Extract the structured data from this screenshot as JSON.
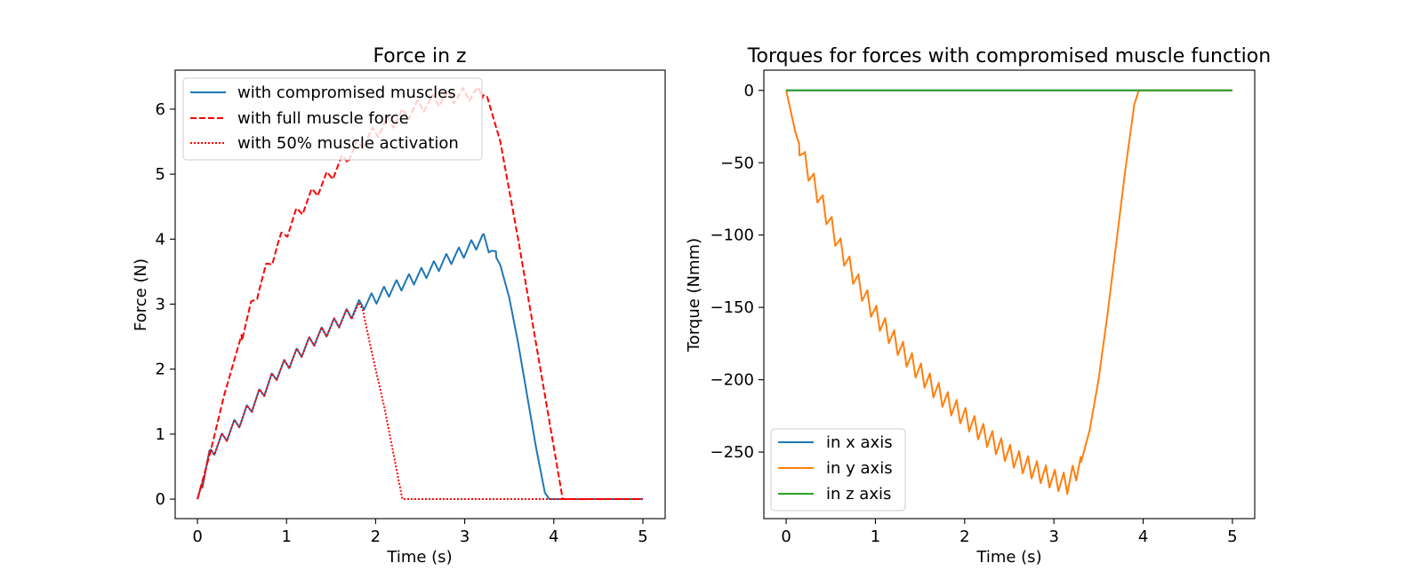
{
  "chart_data": [
    {
      "type": "line",
      "title": "Force in z",
      "xlabel": "Time (s)",
      "ylabel": "Force (N)",
      "xlim": [
        -0.25,
        5.25
      ],
      "ylim": [
        -0.3,
        6.6
      ],
      "xticks": [
        0,
        1,
        2,
        3,
        4,
        5
      ],
      "yticks": [
        0,
        1,
        2,
        3,
        4,
        5,
        6
      ],
      "xtick_labels": [
        "0",
        "1",
        "2",
        "3",
        "4",
        "5"
      ],
      "ytick_labels": [
        "0",
        "1",
        "2",
        "3",
        "4",
        "5",
        "6"
      ],
      "grid": false,
      "legend_position": "top-left",
      "series": [
        {
          "name": "with compromised muscles",
          "color": "#1f77b4",
          "style": "solid",
          "base": [
            [
              0,
              0
            ],
            [
              0.15,
              0.72
            ],
            [
              0.3,
              0.95
            ],
            [
              0.5,
              1.25
            ],
            [
              0.7,
              1.6
            ],
            [
              0.9,
              1.95
            ],
            [
              1.1,
              2.2
            ],
            [
              1.3,
              2.45
            ],
            [
              1.5,
              2.65
            ],
            [
              1.7,
              2.85
            ],
            [
              1.85,
              3.0
            ],
            [
              2.0,
              3.1
            ],
            [
              2.2,
              3.25
            ],
            [
              2.4,
              3.38
            ],
            [
              2.6,
              3.52
            ],
            [
              2.8,
              3.68
            ],
            [
              3.0,
              3.82
            ],
            [
              3.2,
              4.0
            ],
            [
              3.3,
              3.85
            ],
            [
              3.4,
              3.6
            ],
            [
              3.5,
              3.1
            ],
            [
              3.6,
              2.4
            ],
            [
              3.7,
              1.6
            ],
            [
              3.8,
              0.8
            ],
            [
              3.9,
              0.1
            ],
            [
              3.95,
              0.0
            ],
            [
              5.0,
              0.0
            ]
          ],
          "osc_period": 0.14,
          "osc_amplitude": 0.2,
          "osc_range": [
            0.05,
            3.35
          ]
        },
        {
          "name": "with full muscle force",
          "color": "#ff0000",
          "style": "dashed",
          "base": [
            [
              0,
              0
            ],
            [
              0.15,
              0.75
            ],
            [
              0.3,
              1.6
            ],
            [
              0.5,
              2.55
            ],
            [
              0.7,
              3.3
            ],
            [
              0.9,
              3.9
            ],
            [
              1.1,
              4.35
            ],
            [
              1.3,
              4.7
            ],
            [
              1.5,
              5.0
            ],
            [
              1.7,
              5.3
            ],
            [
              1.9,
              5.55
            ],
            [
              2.1,
              5.75
            ],
            [
              2.3,
              5.9
            ],
            [
              2.5,
              6.05
            ],
            [
              2.7,
              6.15
            ],
            [
              2.9,
              6.2
            ],
            [
              3.1,
              6.25
            ],
            [
              3.25,
              6.2
            ],
            [
              3.4,
              5.5
            ],
            [
              3.6,
              4.0
            ],
            [
              3.8,
              2.4
            ],
            [
              4.0,
              0.8
            ],
            [
              4.1,
              0.0
            ],
            [
              5.0,
              0.0
            ]
          ],
          "osc_period": 0.17,
          "osc_amplitude": 0.22,
          "osc_range": [
            0.5,
            3.2
          ]
        },
        {
          "name": "with 50% muscle activation",
          "color": "#ff0000",
          "style": "dotted",
          "base": [
            [
              0,
              0
            ],
            [
              0.15,
              0.72
            ],
            [
              0.3,
              0.95
            ],
            [
              0.5,
              1.25
            ],
            [
              0.7,
              1.6
            ],
            [
              0.9,
              1.95
            ],
            [
              1.1,
              2.2
            ],
            [
              1.3,
              2.45
            ],
            [
              1.5,
              2.65
            ],
            [
              1.7,
              2.85
            ],
            [
              1.85,
              2.95
            ],
            [
              1.95,
              2.3
            ],
            [
              2.1,
              1.4
            ],
            [
              2.2,
              0.7
            ],
            [
              2.3,
              0.0
            ],
            [
              5.0,
              0.0
            ]
          ],
          "osc_period": 0.14,
          "osc_amplitude": 0.2,
          "osc_range": [
            0.05,
            1.85
          ]
        }
      ]
    },
    {
      "type": "line",
      "title": "Torques for forces with compromised muscle function",
      "xlabel": "Time (s)",
      "ylabel": "Torque (Nmm)",
      "xlim": [
        -0.25,
        5.25
      ],
      "ylim": [
        -296,
        14
      ],
      "xticks": [
        0,
        1,
        2,
        3,
        4,
        5
      ],
      "yticks": [
        0,
        -50,
        -100,
        -150,
        -200,
        -250
      ],
      "xtick_labels": [
        "0",
        "1",
        "2",
        "3",
        "4",
        "5"
      ],
      "ytick_labels": [
        "0",
        "−50",
        "−100",
        "−150",
        "−200",
        "−250"
      ],
      "grid": false,
      "legend_position": "bottom-left",
      "series": [
        {
          "name": "in x axis",
          "color": "#1f77b4",
          "style": "solid",
          "base": [
            [
              0,
              0
            ],
            [
              5.0,
              0
            ]
          ],
          "osc_period": 0,
          "osc_amplitude": 0,
          "osc_range": [
            0,
            0
          ]
        },
        {
          "name": "in y axis",
          "color": "#ff7f0e",
          "style": "solid",
          "base": [
            [
              0,
              0
            ],
            [
              0.1,
              -28
            ],
            [
              0.2,
              -48
            ],
            [
              0.4,
              -78
            ],
            [
              0.6,
              -108
            ],
            [
              0.8,
              -133
            ],
            [
              1.0,
              -155
            ],
            [
              1.2,
              -172
            ],
            [
              1.4,
              -188
            ],
            [
              1.6,
              -202
            ],
            [
              1.8,
              -215
            ],
            [
              2.0,
              -226
            ],
            [
              2.2,
              -237
            ],
            [
              2.4,
              -247
            ],
            [
              2.6,
              -256
            ],
            [
              2.8,
              -263
            ],
            [
              3.0,
              -269
            ],
            [
              3.15,
              -272
            ],
            [
              3.3,
              -258
            ],
            [
              3.4,
              -235
            ],
            [
              3.5,
              -200
            ],
            [
              3.6,
              -155
            ],
            [
              3.7,
              -105
            ],
            [
              3.8,
              -55
            ],
            [
              3.9,
              -10
            ],
            [
              3.95,
              0
            ],
            [
              5.0,
              0
            ]
          ],
          "osc_period": 0.1,
          "osc_amplitude": 14,
          "osc_range": [
            0.15,
            3.3
          ]
        },
        {
          "name": "in z axis",
          "color": "#2ca02c",
          "style": "solid",
          "base": [
            [
              0,
              0
            ],
            [
              5.0,
              0
            ]
          ],
          "osc_period": 0,
          "osc_amplitude": 0,
          "osc_range": [
            0,
            0
          ]
        }
      ]
    }
  ]
}
